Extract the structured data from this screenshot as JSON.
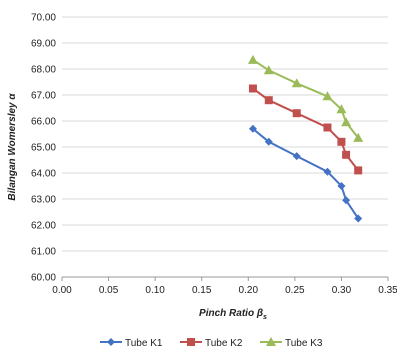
{
  "chart_data": {
    "type": "line",
    "xlabel": "Pinch Ratio β",
    "xlabel_subscript": "s",
    "ylabel": "Bilangan Womersley α",
    "xlim": [
      0.0,
      0.35
    ],
    "ylim": [
      60.0,
      70.0
    ],
    "xticks": [
      "0.00",
      "0.05",
      "0.10",
      "0.15",
      "0.20",
      "0.25",
      "0.30",
      "0.35"
    ],
    "yticks": [
      "60.00",
      "61.00",
      "62.00",
      "63.00",
      "64.00",
      "65.00",
      "66.00",
      "67.00",
      "68.00",
      "69.00",
      "70.00"
    ],
    "grid": "horizontal",
    "legend_position": "bottom",
    "series": [
      {
        "name": "Tube K1",
        "color": "#4472C4",
        "marker": "diamond",
        "x": [
          0.205,
          0.222,
          0.252,
          0.285,
          0.3,
          0.305,
          0.318
        ],
        "y": [
          65.7,
          65.2,
          64.65,
          64.05,
          63.5,
          62.95,
          62.25
        ]
      },
      {
        "name": "Tube K2",
        "color": "#C0504D",
        "marker": "square",
        "x": [
          0.205,
          0.222,
          0.252,
          0.285,
          0.3,
          0.305,
          0.318
        ],
        "y": [
          67.25,
          66.8,
          66.3,
          65.75,
          65.2,
          64.7,
          64.1
        ]
      },
      {
        "name": "Tube K3",
        "color": "#9BBB59",
        "marker": "triangle",
        "x": [
          0.205,
          0.222,
          0.252,
          0.285,
          0.3,
          0.305,
          0.318
        ],
        "y": [
          68.35,
          67.95,
          67.45,
          66.95,
          66.45,
          65.95,
          65.35
        ]
      }
    ]
  }
}
